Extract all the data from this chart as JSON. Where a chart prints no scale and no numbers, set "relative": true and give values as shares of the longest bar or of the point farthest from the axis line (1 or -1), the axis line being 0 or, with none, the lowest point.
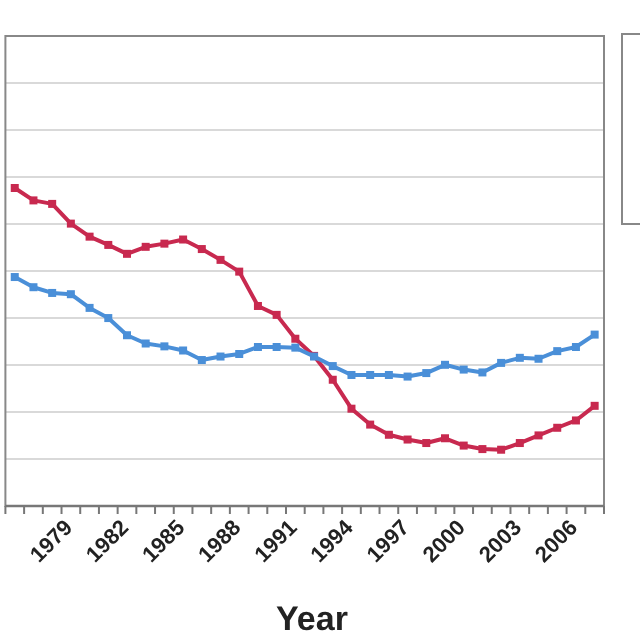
{
  "chart_data": {
    "type": "line",
    "relative": true,
    "xlabel": "Year",
    "grid": true,
    "marker": "square",
    "line_style": "solid",
    "categories": [
      null,
      null,
      "1979",
      null,
      null,
      "1982",
      null,
      null,
      "1985",
      null,
      null,
      "1988",
      null,
      null,
      "1991",
      null,
      null,
      "1994",
      null,
      null,
      "1997",
      null,
      null,
      "2000",
      null,
      null,
      "2003",
      null,
      null,
      "2006",
      null,
      null
    ],
    "series": [
      {
        "color": "#c8294f",
        "values": [
          1,
          0.961,
          0.95,
          0.888,
          0.847,
          0.821,
          0.793,
          0.815,
          0.825,
          0.838,
          0.808,
          0.774,
          0.737,
          0.629,
          0.601,
          0.526,
          0.472,
          0.397,
          0.306,
          0.256,
          0.224,
          0.209,
          0.198,
          0.213,
          0.19,
          0.179,
          0.177,
          0.198,
          0.222,
          0.246,
          0.269,
          0.315
        ]
      },
      {
        "color": "#4a8fd8",
        "values": [
          0.72,
          0.688,
          0.67,
          0.666,
          0.623,
          0.591,
          0.537,
          0.511,
          0.502,
          0.489,
          0.459,
          0.47,
          0.478,
          0.5,
          0.5,
          0.498,
          0.47,
          0.44,
          0.412,
          0.412,
          0.412,
          0.407,
          0.418,
          0.444,
          0.429,
          0.42,
          0.45,
          0.466,
          0.463,
          0.487,
          0.5,
          0.539
        ]
      }
    ]
  }
}
